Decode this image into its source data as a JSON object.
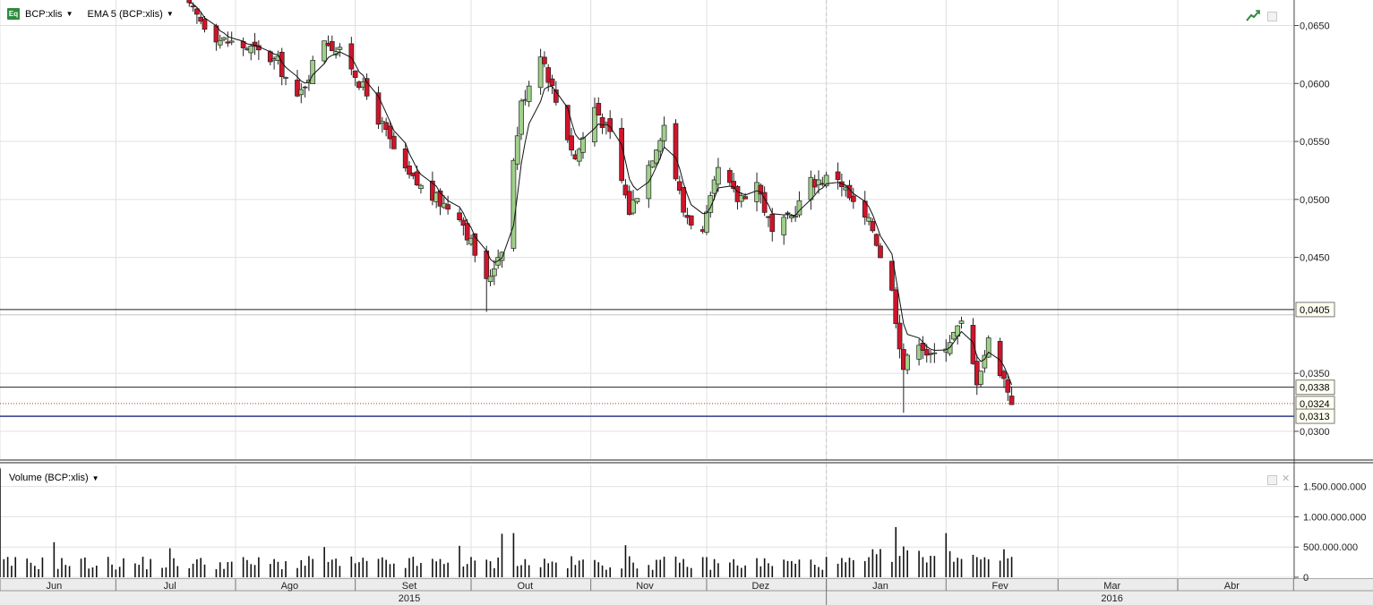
{
  "toolbar": {
    "instrument_label": "BCP:xlis",
    "icon_text": "Eq",
    "indicator_label": "EMA 5 (BCP:xlis)"
  },
  "volume_panel": {
    "title": "Volume (BCP:xlis)"
  },
  "colors": {
    "up": "#9fd08a",
    "down": "#d0142a",
    "grid": "#e0e0e0",
    "support_blue": "#2e3a86",
    "dotted_red": "#c0392b"
  },
  "chart_data": [
    {
      "type": "candlestick",
      "overlay": "EMA 5",
      "ylim": [
        0.0276,
        0.0672
      ],
      "x_range": [
        "2015-06-01",
        "2016-04-30"
      ],
      "y_ticks": [
        0.03,
        0.035,
        0.045,
        0.05,
        0.055,
        0.06,
        0.065
      ],
      "y_tick_labels": [
        "0,0300",
        "0,0350",
        "0,0450",
        "0,0500",
        "0,0550",
        "0,0600",
        "0,0650"
      ],
      "horizontal_lines": [
        {
          "value": 0.0405,
          "label": "0,0405",
          "style": "solid-dark"
        },
        {
          "value": 0.0338,
          "label": "0,0338",
          "style": "solid-dark"
        },
        {
          "value": 0.0324,
          "label": "0,0324",
          "style": "dotted-red"
        },
        {
          "value": 0.0313,
          "label": "0,0313",
          "style": "solid-blue"
        }
      ],
      "x_month_labels": [
        {
          "label": "Jun",
          "date": "2015-06-15"
        },
        {
          "label": "Jul",
          "date": "2015-07-15"
        },
        {
          "label": "Ago",
          "date": "2015-08-15"
        },
        {
          "label": "Set",
          "date": "2015-09-15"
        },
        {
          "label": "Out",
          "date": "2015-10-15"
        },
        {
          "label": "Nov",
          "date": "2015-11-15"
        },
        {
          "label": "Dez",
          "date": "2015-12-15"
        },
        {
          "label": "Jan",
          "date": "2016-01-15"
        },
        {
          "label": "Fev",
          "date": "2016-02-15"
        },
        {
          "label": "Mar",
          "date": "2016-03-15"
        },
        {
          "label": "Abr",
          "date": "2016-04-15"
        }
      ],
      "x_year_labels": [
        {
          "label": "2015",
          "date": "2015-09-15"
        },
        {
          "label": "2016",
          "date": "2016-03-15"
        }
      ],
      "price_keyframes": [
        [
          "2015-07-20",
          0.0665
        ],
        [
          "2015-07-28",
          0.0638
        ],
        [
          "2015-08-05",
          0.063
        ],
        [
          "2015-08-12",
          0.0618
        ],
        [
          "2015-08-17",
          0.0585
        ],
        [
          "2015-08-24",
          0.064
        ],
        [
          "2015-08-31",
          0.0615
        ],
        [
          "2015-09-07",
          0.057
        ],
        [
          "2015-09-14",
          0.0522
        ],
        [
          "2015-09-21",
          0.0502
        ],
        [
          "2015-09-28",
          0.0488
        ],
        [
          "2015-10-05",
          0.0428
        ],
        [
          "2015-10-09",
          0.046
        ],
        [
          "2015-10-14",
          0.0582
        ],
        [
          "2015-10-19",
          0.0628
        ],
        [
          "2015-10-23",
          0.0585
        ],
        [
          "2015-10-28",
          0.0535
        ],
        [
          "2015-11-02",
          0.058
        ],
        [
          "2015-11-06",
          0.0555
        ],
        [
          "2015-11-11",
          0.049
        ],
        [
          "2015-11-16",
          0.053
        ],
        [
          "2015-11-20",
          0.0565
        ],
        [
          "2015-11-25",
          0.049
        ],
        [
          "2015-11-30",
          0.047
        ],
        [
          "2015-12-04",
          0.0525
        ],
        [
          "2015-12-09",
          0.05
        ],
        [
          "2015-12-14",
          0.0515
        ],
        [
          "2015-12-18",
          0.047
        ],
        [
          "2015-12-23",
          0.0485
        ],
        [
          "2015-12-28",
          0.0515
        ],
        [
          "2016-01-04",
          0.052
        ],
        [
          "2016-01-08",
          0.0495
        ],
        [
          "2016-01-13",
          0.0475
        ],
        [
          "2016-01-18",
          0.042
        ],
        [
          "2016-01-21",
          0.0355
        ],
        [
          "2016-01-25",
          0.038
        ],
        [
          "2016-01-28",
          0.0362
        ],
        [
          "2016-02-02",
          0.038
        ],
        [
          "2016-02-05",
          0.0392
        ],
        [
          "2016-02-09",
          0.0345
        ],
        [
          "2016-02-12",
          0.0378
        ],
        [
          "2016-02-16",
          0.0345
        ],
        [
          "2016-02-18",
          0.0327
        ]
      ],
      "low_extremes": [
        [
          "2015-10-05",
          0.0403
        ],
        [
          "2016-01-21",
          0.0316
        ]
      ],
      "volume": {
        "ylim": [
          0,
          1850000000
        ],
        "y_ticks": [
          0,
          500000000,
          1000000000,
          1500000000
        ],
        "y_tick_labels": [
          "0",
          "500.000.000",
          "1.000.000.000",
          "1.500.000.000"
        ],
        "peaks": [
          [
            "2015-06-01",
            1800000000
          ],
          [
            "2015-06-15",
            580000000
          ],
          [
            "2015-07-15",
            480000000
          ],
          [
            "2015-08-24",
            500000000
          ],
          [
            "2015-09-28",
            520000000
          ],
          [
            "2015-10-09",
            720000000
          ],
          [
            "2015-10-12",
            730000000
          ],
          [
            "2015-11-10",
            530000000
          ],
          [
            "2016-01-19",
            830000000
          ],
          [
            "2016-01-21",
            510000000
          ],
          [
            "2016-02-01",
            730000000
          ]
        ]
      }
    }
  ]
}
